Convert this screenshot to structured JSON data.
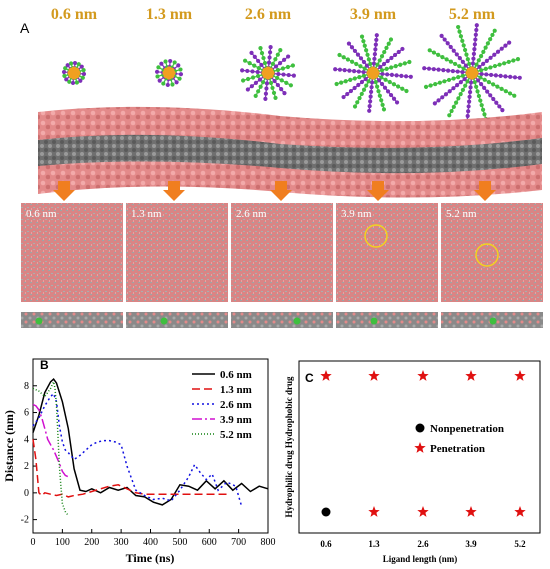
{
  "panel_a": {
    "letter": "A",
    "np_labels": [
      "0.6 nm",
      "1.3 nm",
      "2.6 nm",
      "3.9 nm",
      "5.2 nm"
    ],
    "snapshot_labels": [
      "0.6 nm",
      "1.3 nm",
      "2.6 nm",
      "3.9 nm",
      "5.2 nm"
    ],
    "colors": {
      "label": "#d39a1e",
      "arrow": "#f07e1f",
      "lipid_head": "#e38a8a",
      "lipid_tail": "#7d7d7d",
      "ligand_green": "#3fbf3f",
      "ligand_purple": "#7d2fb8",
      "core": "#f0a020",
      "circle": "#f2d21e"
    }
  },
  "panel_b": {
    "letter": "B"
  },
  "panel_c": {
    "letter": "C"
  },
  "chart_data": [
    {
      "type": "line",
      "xlabel": "Time (ns)",
      "ylabel": "Distance (nm)",
      "xlim": [
        0,
        800
      ],
      "ylim": [
        -3,
        10
      ],
      "xticks": [
        "0",
        "100",
        "200",
        "300",
        "400",
        "500",
        "600",
        "700",
        "800"
      ],
      "yticks": [
        "-2",
        "0",
        "2",
        "4",
        "6",
        "8"
      ],
      "legend_position": "top-right",
      "series": [
        {
          "name": "0.6 nm",
          "color": "#000000",
          "dash": "",
          "x": [
            0,
            20,
            40,
            60,
            70,
            80,
            100,
            120,
            140,
            160,
            180,
            200,
            230,
            260,
            290,
            320,
            350,
            380,
            410,
            440,
            470,
            500,
            530,
            560,
            590,
            620,
            650,
            680,
            710,
            740,
            770,
            800
          ],
          "y": [
            4.5,
            5.8,
            7.5,
            8.3,
            8.5,
            8.2,
            6.8,
            4.8,
            1.8,
            0.2,
            0.1,
            0.3,
            0.0,
            0.4,
            0.2,
            0.4,
            -0.2,
            -0.3,
            -0.7,
            -0.9,
            -0.5,
            0.6,
            0.5,
            0.2,
            0.9,
            0.3,
            0.9,
            0.2,
            0.7,
            0.1,
            0.5,
            0.3
          ]
        },
        {
          "name": "1.3 nm",
          "color": "#e01010",
          "dash": "8,4",
          "x": [
            0,
            10,
            20,
            30,
            40,
            60,
            80,
            100,
            120,
            140,
            170,
            200,
            230,
            260,
            290,
            320,
            350,
            380,
            410,
            440,
            470,
            500,
            540,
            580,
            620,
            660
          ],
          "y": [
            4.0,
            2.5,
            0.0,
            -0.2,
            0.0,
            -0.1,
            -0.2,
            -0.1,
            -0.3,
            -0.2,
            -0.1,
            0.1,
            0.3,
            0.5,
            0.6,
            0.3,
            0.0,
            -0.1,
            -0.1,
            -0.1,
            -0.1,
            -0.1,
            -0.1,
            -0.1,
            -0.1,
            -0.1
          ]
        },
        {
          "name": "2.6 nm",
          "color": "#1010e0",
          "dash": "2,3",
          "x": [
            0,
            20,
            40,
            60,
            70,
            80,
            90,
            100,
            110,
            120,
            140,
            160,
            180,
            200,
            220,
            240,
            260,
            280,
            300,
            320,
            350,
            380,
            410,
            440,
            470,
            500,
            530,
            550,
            570,
            590,
            610,
            630,
            660,
            690,
            710
          ],
          "y": [
            5.0,
            5.6,
            6.5,
            7.2,
            7.4,
            6.8,
            5.0,
            3.8,
            3.2,
            3.0,
            2.5,
            2.8,
            3.2,
            3.6,
            3.8,
            3.9,
            3.9,
            3.8,
            3.6,
            2.0,
            0.2,
            -0.2,
            -0.5,
            -0.4,
            -0.6,
            0.2,
            1.2,
            2.1,
            1.5,
            1.0,
            1.4,
            0.2,
            0.8,
            0.5,
            -1.0
          ]
        },
        {
          "name": "3.9 nm",
          "color": "#d010d0",
          "dash": "10,3,2,3",
          "x": [
            0,
            10,
            20,
            30,
            40,
            50,
            60,
            70,
            80,
            90,
            100,
            110,
            120
          ],
          "y": [
            6.6,
            6.5,
            6.2,
            5.6,
            4.8,
            4.0,
            3.6,
            3.2,
            2.7,
            2.2,
            1.6,
            1.3,
            1.2
          ]
        },
        {
          "name": "5.2 nm",
          "color": "#108010",
          "dash": "1,2",
          "x": [
            0,
            20,
            40,
            60,
            70,
            75,
            80,
            85,
            90,
            95,
            100,
            110,
            120
          ],
          "y": [
            7.8,
            7.6,
            7.2,
            7.8,
            8.3,
            7.8,
            6.5,
            4.2,
            2.0,
            0.5,
            -0.8,
            -1.4,
            -1.7
          ]
        }
      ]
    },
    {
      "type": "scatter",
      "xlabel": "Ligand length (nm)",
      "ylabel": "Hydrophilic drug  Hydrophobic drug",
      "categories": [
        "0.6",
        "1.3",
        "2.6",
        "3.9",
        "5.2"
      ],
      "rows": [
        "Hydrophobic drug",
        "Hydrophilic drug"
      ],
      "legend": [
        {
          "label": "Nonpenetration",
          "marker": "circle",
          "color": "#000000"
        },
        {
          "label": "Penetration",
          "marker": "star",
          "color": "#e01010"
        }
      ],
      "points": [
        {
          "category": "0.6",
          "row": "Hydrophobic drug",
          "result": "Penetration"
        },
        {
          "category": "1.3",
          "row": "Hydrophobic drug",
          "result": "Penetration"
        },
        {
          "category": "2.6",
          "row": "Hydrophobic drug",
          "result": "Penetration"
        },
        {
          "category": "3.9",
          "row": "Hydrophobic drug",
          "result": "Penetration"
        },
        {
          "category": "5.2",
          "row": "Hydrophobic drug",
          "result": "Penetration"
        },
        {
          "category": "0.6",
          "row": "Hydrophilic drug",
          "result": "Nonpenetration"
        },
        {
          "category": "1.3",
          "row": "Hydrophilic drug",
          "result": "Penetration"
        },
        {
          "category": "2.6",
          "row": "Hydrophilic drug",
          "result": "Penetration"
        },
        {
          "category": "3.9",
          "row": "Hydrophilic drug",
          "result": "Penetration"
        },
        {
          "category": "5.2",
          "row": "Hydrophilic drug",
          "result": "Penetration"
        }
      ]
    }
  ]
}
